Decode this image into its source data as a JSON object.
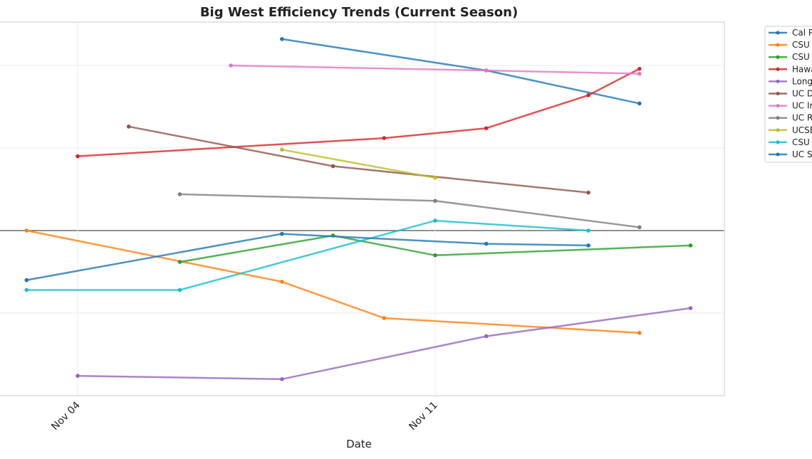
{
  "chart_data": {
    "type": "line",
    "title": "Big West Efficiency Trends (Current Season)",
    "xlabel": "Date",
    "ylabel": "",
    "x_ticks": [
      {
        "date": "2024-11-04",
        "label": "Nov 04"
      },
      {
        "date": "2024-11-11",
        "label": "Nov 11"
      }
    ],
    "xlim": [
      "2024-11-02",
      "2024-11-16"
    ],
    "ylim": [
      -10,
      12.6
    ],
    "y_gridlines": [
      -5,
      0,
      5,
      10
    ],
    "zero_line": true,
    "grid": true,
    "legend_position": "outside-right",
    "series": [
      {
        "name": "Cal P",
        "color": "#1f77b4",
        "points": [
          [
            "2024-11-08",
            11.6
          ],
          [
            "2024-11-12",
            9.7
          ],
          [
            "2024-11-15",
            7.7
          ]
        ]
      },
      {
        "name": "CSU",
        "color": "#ff7f0e",
        "points": [
          [
            "2024-11-03",
            0.0
          ],
          [
            "2024-11-08",
            -3.1
          ],
          [
            "2024-11-10",
            -5.3
          ],
          [
            "2024-11-15",
            -6.2
          ]
        ]
      },
      {
        "name": "CSU",
        "color": "#2ca02c",
        "points": [
          [
            "2024-11-06",
            -1.9
          ],
          [
            "2024-11-09",
            -0.3
          ],
          [
            "2024-11-11",
            -1.5
          ],
          [
            "2024-11-16",
            -0.9
          ]
        ]
      },
      {
        "name": "Hawa",
        "color": "#d62728",
        "points": [
          [
            "2024-11-04",
            4.5
          ],
          [
            "2024-11-10",
            5.6
          ],
          [
            "2024-11-12",
            6.2
          ],
          [
            "2024-11-14",
            8.2
          ],
          [
            "2024-11-15",
            9.8
          ]
        ]
      },
      {
        "name": "Long",
        "color": "#9467bd",
        "points": [
          [
            "2024-11-04",
            -8.8
          ],
          [
            "2024-11-08",
            -9.0
          ],
          [
            "2024-11-12",
            -6.4
          ],
          [
            "2024-11-16",
            -4.7
          ]
        ]
      },
      {
        "name": "UC D",
        "color": "#8c564b",
        "points": [
          [
            "2024-11-05",
            6.3
          ],
          [
            "2024-11-09",
            3.9
          ],
          [
            "2024-11-14",
            2.3
          ]
        ]
      },
      {
        "name": "UC Ir",
        "color": "#e377c2",
        "points": [
          [
            "2024-11-07",
            10.0
          ],
          [
            "2024-11-12",
            9.7
          ],
          [
            "2024-11-15",
            9.5
          ]
        ]
      },
      {
        "name": "UC R",
        "color": "#7f7f7f",
        "points": [
          [
            "2024-11-06",
            2.2
          ],
          [
            "2024-11-11",
            1.8
          ],
          [
            "2024-11-15",
            0.2
          ]
        ]
      },
      {
        "name": "UCSB",
        "color": "#bcbd22",
        "points": [
          [
            "2024-11-08",
            4.9
          ],
          [
            "2024-11-11",
            3.2
          ]
        ]
      },
      {
        "name": "CSU",
        "color": "#17becf",
        "points": [
          [
            "2024-11-03",
            -3.6
          ],
          [
            "2024-11-06",
            -3.6
          ],
          [
            "2024-11-11",
            0.6
          ],
          [
            "2024-11-14",
            0.0
          ]
        ]
      },
      {
        "name": "UC S",
        "color": "#1f77b4",
        "points": [
          [
            "2024-11-03",
            -3.0
          ],
          [
            "2024-11-08",
            -0.2
          ],
          [
            "2024-11-12",
            -0.8
          ],
          [
            "2024-11-14",
            -0.9
          ]
        ]
      }
    ]
  }
}
